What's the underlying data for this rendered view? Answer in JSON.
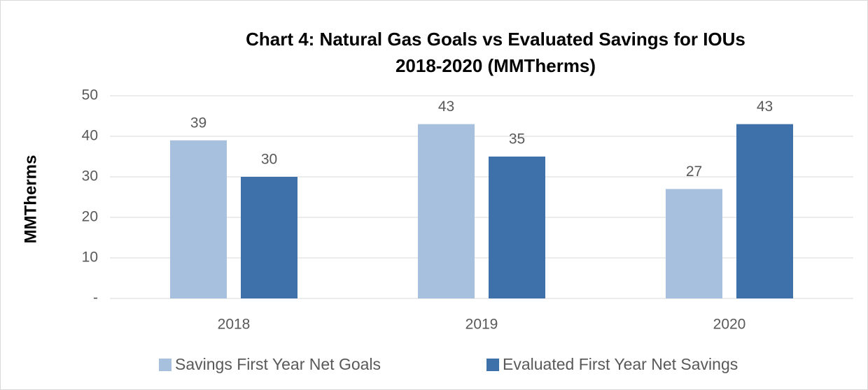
{
  "chart_data": {
    "type": "bar",
    "title": [
      "Chart 4: Natural Gas Goals vs Evaluated Savings for IOUs",
      "2018-2020 (MMTherms)"
    ],
    "y_label": "MMTherms",
    "categories": [
      "2018",
      "2019",
      "2020"
    ],
    "series": [
      {
        "name": "Savings First Year Net Goals",
        "color": "#a7c0de",
        "values": [
          39,
          43,
          27
        ]
      },
      {
        "name": "Evaluated First Year Net Savings",
        "color": "#3e70a9",
        "values": [
          30,
          35,
          43
        ]
      }
    ],
    "ylim": [
      0,
      50
    ],
    "yticks": [
      {
        "value": 0,
        "label": "-"
      },
      10,
      20,
      30,
      40,
      50
    ],
    "grid": true,
    "legend": "bottom"
  }
}
